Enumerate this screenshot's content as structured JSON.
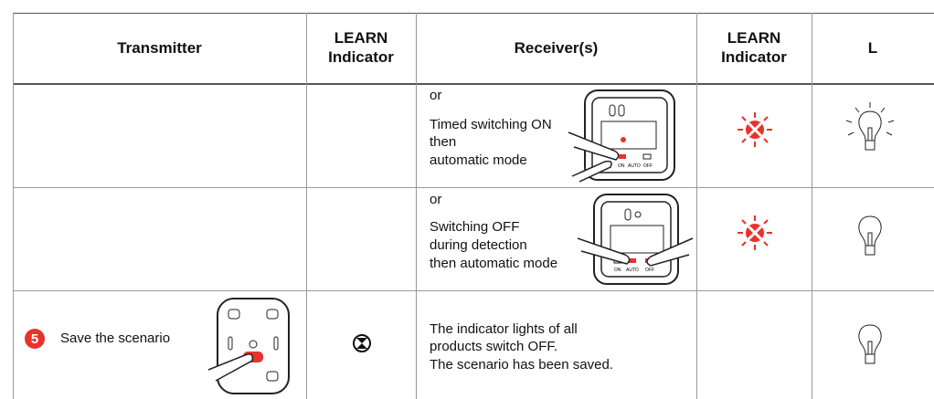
{
  "table": {
    "header": [
      [
        "Transmitter"
      ],
      [
        "LEARN",
        "Indicator"
      ],
      [
        "Receiver(s)"
      ],
      [
        "LEARN",
        "Indicator"
      ],
      [
        "L"
      ]
    ],
    "rows": [
      {
        "receiver": {
          "or": "or",
          "lines": [
            "Timed switching ON",
            "then",
            "automatic mode"
          ],
          "buttons": [
            "ON",
            "AUTO",
            "OFF"
          ]
        }
      },
      {
        "receiver": {
          "or": "or",
          "lines": [
            "Switching OFF",
            "during detection",
            "then automatic mode"
          ],
          "buttons": [
            "ON",
            "AUTO",
            "OFF"
          ]
        }
      },
      {
        "transmitter": {
          "step": "5",
          "label": "Save the scenario"
        },
        "receiver": {
          "lines": [
            "The indicator lights of all",
            "products switch OFF.",
            "The scenario has been saved."
          ]
        }
      }
    ]
  }
}
